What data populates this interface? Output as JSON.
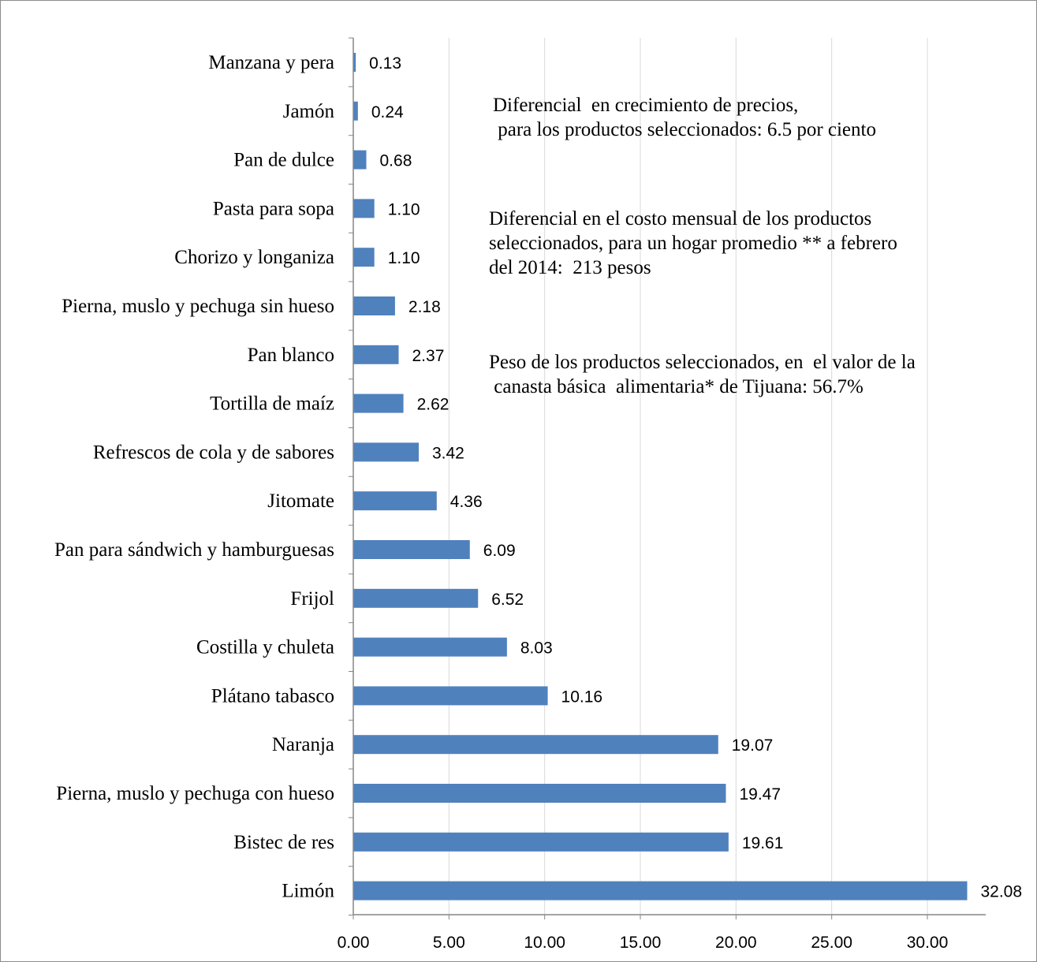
{
  "chart_data": {
    "type": "bar",
    "orientation": "horizontal",
    "categories": [
      "Manzana y pera",
      "Jamón",
      "Pan de dulce",
      "Pasta para sopa",
      "Chorizo y longaniza",
      "Pierna, muslo y pechuga sin hueso",
      "Pan blanco",
      "Tortilla de maíz",
      "Refrescos de cola y de sabores",
      "Jitomate",
      "Pan para sándwich y hamburguesas",
      "Frijol",
      "Costilla y chuleta",
      "Plátano tabasco",
      "Naranja",
      "Pierna, muslo y pechuga con hueso",
      "Bistec de res",
      "Limón"
    ],
    "values": [
      0.13,
      0.24,
      0.68,
      1.1,
      1.1,
      2.18,
      2.37,
      2.62,
      3.42,
      4.36,
      6.09,
      6.52,
      8.03,
      10.16,
      19.07,
      19.47,
      19.61,
      32.08
    ],
    "value_labels": [
      "0.13",
      "0.24",
      "0.68",
      "1.10",
      "1.10",
      "2.18",
      "2.37",
      "2.62",
      "3.42",
      "4.36",
      "6.09",
      "6.52",
      "8.03",
      "10.16",
      "19.07",
      "19.47",
      "19.61",
      "32.08"
    ],
    "xticks": [
      "0.00",
      "5.00",
      "10.00",
      "15.00",
      "20.00",
      "25.00",
      "30.00"
    ],
    "xlim": [
      0,
      33
    ],
    "grid": "vertical",
    "bar_color": "#4f81bd",
    "grid_color": "#d9d9d9",
    "annotations": [
      "Diferencial  en crecimiento de precios,\n para los productos seleccionados: 6.5 por ciento",
      "Diferencial en el costo mensual de los productos\nseleccionados, para un hogar promedio ** a febrero\ndel 2014:  213 pesos",
      "Peso de los productos seleccionados, en  el valor de la\n canasta básica  alimentaria* de Tijuana: 56.7%"
    ]
  }
}
